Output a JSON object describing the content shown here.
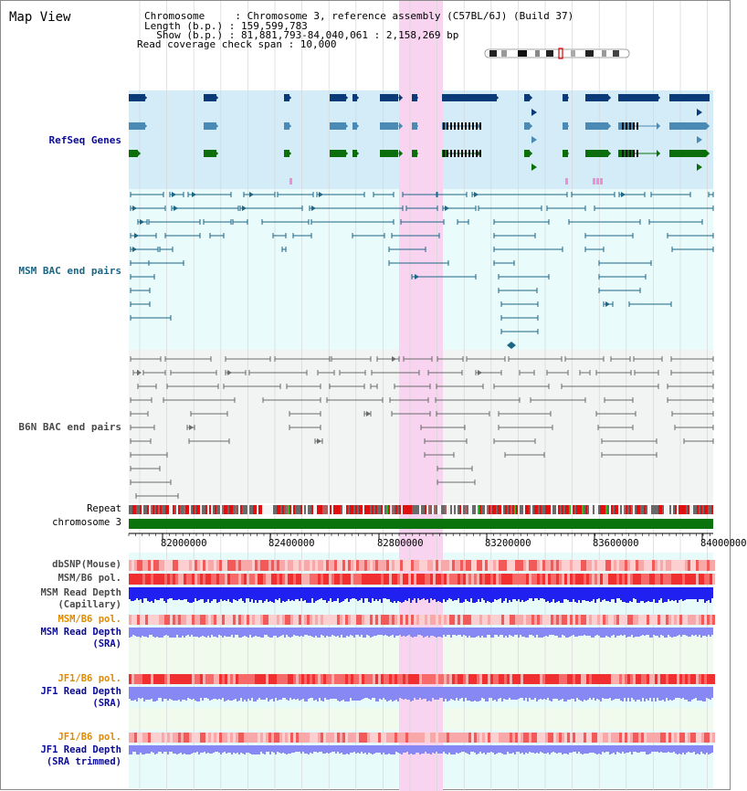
{
  "title": "Map View",
  "header": {
    "chromosome": "Chromosome     : Chromosome 3, reference assembly (C57BL/6J) (Build 37)",
    "length": "Length (b.p.) : 159,599,783",
    "show": "  Show (b.p.) : 81,881,793-84,040,061 : 2,158,269 bp",
    "coverage": "Read coverage check span : 10,000"
  },
  "tracks": {
    "refseq": "RefSeq Genes",
    "msm_bac": "MSM BAC end pairs",
    "b6n_bac": "B6N BAC end pairs",
    "repeat": "Repeat",
    "chromosome": "chromosome 3",
    "dbsnp": "dbSNP(Mouse)",
    "msm_b6_pol": "MSM/B6 pol.",
    "msm_rd_cap_1": "MSM Read Depth",
    "msm_rd_cap_2": "(Capillary)",
    "msm_b6_pol_2": "MSM/B6 pol.",
    "msm_rd_sra_1": "MSM Read Depth",
    "msm_rd_sra_2": "(SRA)",
    "jf1_b6_pol": "JF1/B6 pol.",
    "jf1_rd_sra_1": "JF1 Read Depth",
    "jf1_rd_sra_2": "(SRA)",
    "jf1_b6_pol_2": "JF1/B6 pol.",
    "jf1_rd_trim_1": "JF1 Read Depth",
    "jf1_rd_trim_2": "(SRA trimmed)"
  },
  "axis": {
    "ticks": [
      "82000000",
      "82400000",
      "82800000",
      "83200000",
      "83600000",
      "84000000"
    ]
  },
  "colors": {
    "refseq_navy": "#0a3a78",
    "refseq_steel": "#4a8ab4",
    "refseq_green": "#0b6e0b",
    "msm_teal": "#1b6685",
    "b6n_gray": "#6a6a6a",
    "highlight": "#f8d4f0",
    "chromosome_green": "#0b730b",
    "snp_red": "#f03030",
    "depth_blue": "#2020f0",
    "depth_lavender": "#8888f4"
  }
}
